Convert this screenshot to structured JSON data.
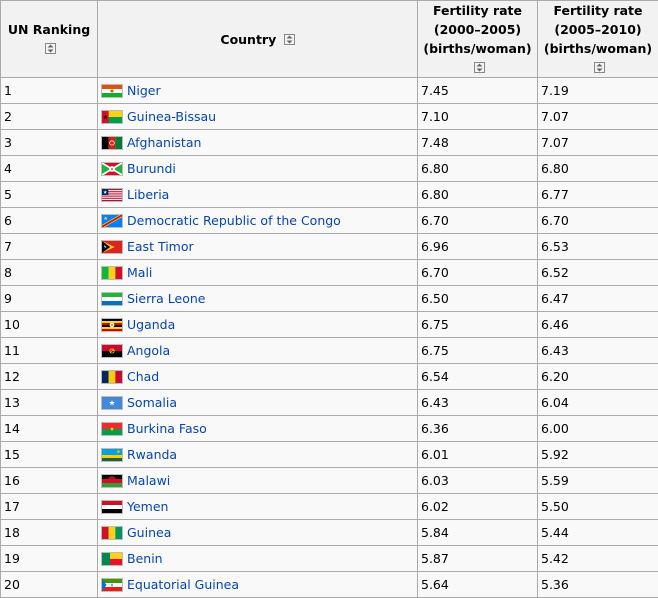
{
  "table": {
    "headers": {
      "rank": "UN Ranking",
      "country": "Country",
      "rate1_line1": "Fertility rate",
      "rate1_line2": "(2000–2005)",
      "rate1_line3": "(births/woman)",
      "rate2_line1": "Fertility rate",
      "rate2_line2": "(2005–2010)",
      "rate2_line3": "(births/woman)"
    },
    "rows": [
      {
        "rank": "1",
        "country": "Niger",
        "flag": "niger",
        "r1": "7.45",
        "r2": "7.19"
      },
      {
        "rank": "2",
        "country": "Guinea-Bissau",
        "flag": "guinea-bissau",
        "r1": "7.10",
        "r2": "7.07"
      },
      {
        "rank": "3",
        "country": "Afghanistan",
        "flag": "afghanistan",
        "r1": "7.48",
        "r2": "7.07"
      },
      {
        "rank": "4",
        "country": "Burundi",
        "flag": "burundi",
        "r1": "6.80",
        "r2": "6.80"
      },
      {
        "rank": "5",
        "country": "Liberia",
        "flag": "liberia",
        "r1": "6.80",
        "r2": "6.77"
      },
      {
        "rank": "6",
        "country": "Democratic Republic of the Congo",
        "flag": "dr-congo",
        "r1": "6.70",
        "r2": "6.70"
      },
      {
        "rank": "7",
        "country": "East Timor",
        "flag": "east-timor",
        "r1": "6.96",
        "r2": "6.53"
      },
      {
        "rank": "8",
        "country": "Mali",
        "flag": "mali",
        "r1": "6.70",
        "r2": "6.52"
      },
      {
        "rank": "9",
        "country": "Sierra Leone",
        "flag": "sierra-leone",
        "r1": "6.50",
        "r2": "6.47"
      },
      {
        "rank": "10",
        "country": "Uganda",
        "flag": "uganda",
        "r1": "6.75",
        "r2": "6.46"
      },
      {
        "rank": "11",
        "country": "Angola",
        "flag": "angola",
        "r1": "6.75",
        "r2": "6.43"
      },
      {
        "rank": "12",
        "country": "Chad",
        "flag": "chad",
        "r1": "6.54",
        "r2": "6.20"
      },
      {
        "rank": "13",
        "country": "Somalia",
        "flag": "somalia",
        "r1": "6.43",
        "r2": "6.04"
      },
      {
        "rank": "14",
        "country": "Burkina Faso",
        "flag": "burkina-faso",
        "r1": "6.36",
        "r2": "6.00"
      },
      {
        "rank": "15",
        "country": "Rwanda",
        "flag": "rwanda",
        "r1": "6.01",
        "r2": "5.92"
      },
      {
        "rank": "16",
        "country": "Malawi",
        "flag": "malawi",
        "r1": "6.03",
        "r2": "5.59"
      },
      {
        "rank": "17",
        "country": "Yemen",
        "flag": "yemen",
        "r1": "6.02",
        "r2": "5.50"
      },
      {
        "rank": "18",
        "country": "Guinea",
        "flag": "guinea",
        "r1": "5.84",
        "r2": "5.44"
      },
      {
        "rank": "19",
        "country": "Benin",
        "flag": "benin",
        "r1": "5.87",
        "r2": "5.42"
      },
      {
        "rank": "20",
        "country": "Equatorial Guinea",
        "flag": "equatorial-guinea",
        "r1": "5.64",
        "r2": "5.36"
      }
    ]
  },
  "colors": {
    "link": "#0645ad",
    "header_bg": "#f2f2f2",
    "cell_bg": "#f9f9f9",
    "border": "#aaaaaa"
  }
}
